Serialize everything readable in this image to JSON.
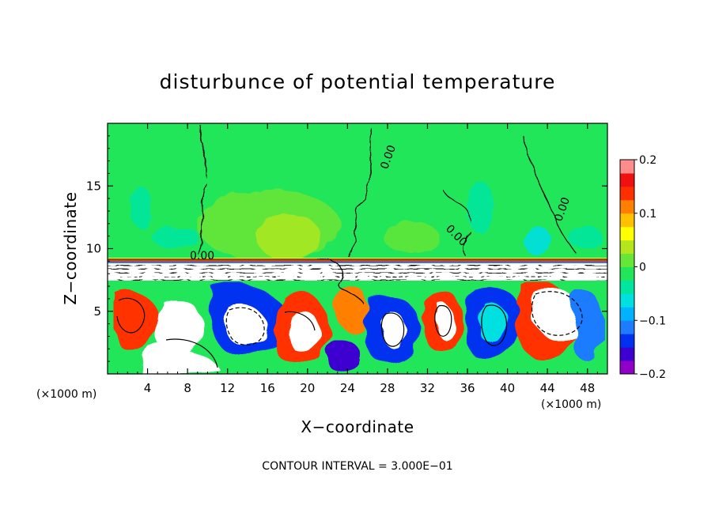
{
  "chart_data": {
    "type": "heatmap",
    "title": "disturbunce of potential temperature",
    "xlabel": "X−coordinate",
    "ylabel": "Z−coordinate",
    "x_unit": "(×1000 m)",
    "y_unit": "(×1000 m)",
    "xlim": [
      0,
      50
    ],
    "ylim": [
      0,
      20
    ],
    "x_ticks": [
      4,
      8,
      12,
      16,
      20,
      24,
      28,
      32,
      36,
      40,
      44,
      48
    ],
    "y_ticks": [
      5,
      10,
      15
    ],
    "footnote": "CONTOUR INTERVAL = 3.000E−01",
    "contour_labels": [
      "0.00",
      "0.00",
      "0.00",
      "0.00"
    ],
    "colorbar": {
      "min": -0.2,
      "max": 0.2,
      "tick_values": [
        0.2,
        0.1,
        0,
        -0.1,
        -0.2
      ],
      "tick_labels": [
        "0.2",
        "0.1",
        "0",
        "−0.1",
        "−0.2"
      ],
      "colors": [
        "#8f00c8",
        "#3c00d0",
        "#0030f0",
        "#1d7cff",
        "#00b2ff",
        "#00e0e0",
        "#00e6a0",
        "#22e65a",
        "#66e636",
        "#b4e61e",
        "#ffff00",
        "#ffc000",
        "#ff8000",
        "#ff3000",
        "#f01010",
        "#ff8c8c"
      ]
    },
    "layers": {
      "stratosphere_top_z": 9.0,
      "inversion_bottom_z": 7.5
    }
  }
}
